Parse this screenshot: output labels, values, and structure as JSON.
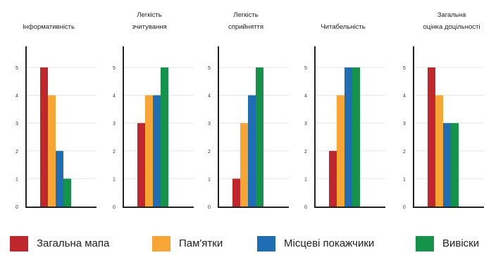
{
  "chart_data": {
    "type": "bar",
    "series": [
      {
        "name": "Загальна мапа",
        "color": "#c0272d"
      },
      {
        "name": "Пам'ятки",
        "color": "#f7a535"
      },
      {
        "name": "Місцеві покажчики",
        "color": "#1f6eb3"
      },
      {
        "name": "Вивіски",
        "color": "#15934a"
      }
    ],
    "ylim": [
      0,
      5
    ],
    "yticks": [
      "0",
      "1",
      "2",
      "3",
      "4",
      "5"
    ],
    "grid": true,
    "legend_position": "bottom",
    "panels": [
      {
        "title": [
          "Інформативність"
        ],
        "values": [
          5,
          4,
          2,
          1
        ]
      },
      {
        "title": [
          "Легкість",
          "зчитування"
        ],
        "values": [
          3,
          4,
          4,
          5
        ]
      },
      {
        "title": [
          "Легкість",
          "сприйняття"
        ],
        "values": [
          1,
          3,
          4,
          5
        ]
      },
      {
        "title": [
          "Читабельність"
        ],
        "values": [
          2,
          4,
          5,
          5
        ]
      },
      {
        "title": [
          "Загальна",
          "оцінка доцільності"
        ],
        "values": [
          5,
          4,
          3,
          3
        ]
      }
    ]
  }
}
